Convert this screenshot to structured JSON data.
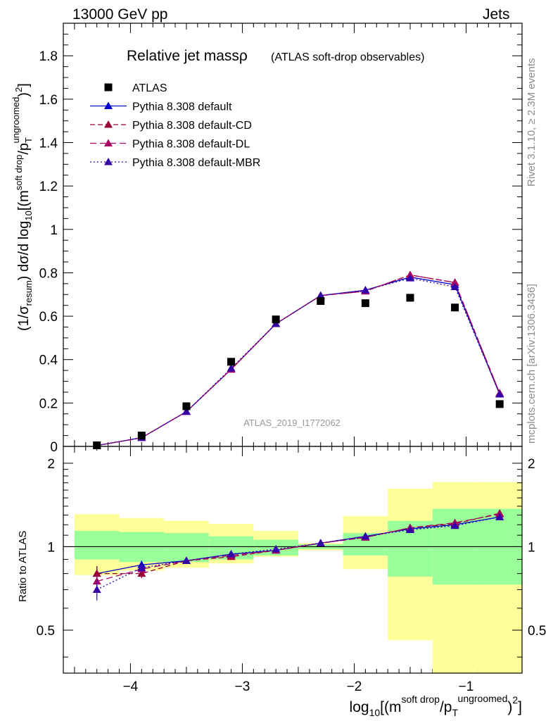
{
  "header": {
    "left": "13000 GeV pp",
    "right": "Jets"
  },
  "side_labels": {
    "rivet": "Rivet 3.1.10, ≥ 2.3M events",
    "mcplots": "mcplots.cern.ch [arXiv:1306.3436]"
  },
  "chart_data": {
    "type": "line",
    "title": "Relative jet massρ",
    "subtitle": "(ATLAS soft-drop observables)",
    "watermark": "ATLAS_2019_I1772062",
    "xlim": [
      -4.6,
      -0.5
    ],
    "x_ticks": [
      -4,
      -3,
      -2,
      -1
    ],
    "x_tick_labels": [
      "−4",
      "−3",
      "−2",
      "−1"
    ],
    "xlabel": "log10[(m^{soft drop}/p_T^{ungroomed})^2]",
    "xlabel_parts": {
      "a": "log",
      "b": "10",
      "c": "[(m",
      "d": "soft drop",
      "e": "/p",
      "f": "T",
      "g": "ungroomed",
      "h": ")",
      "i": "2",
      "j": "]"
    },
    "main": {
      "ylim": [
        0,
        1.95
      ],
      "y_ticks": [
        0,
        0.2,
        0.4,
        0.6,
        0.8,
        1,
        1.2,
        1.4,
        1.6,
        1.8
      ],
      "y_tick_labels": [
        "0",
        "0.2",
        "0.4",
        "0.6",
        "0.8",
        "1",
        "1.2",
        "1.4",
        "1.6",
        "1.8"
      ],
      "ylabel": "(1/σresum) dσ/d log10[(m^{soft drop}/p_T^{ungroomed})^2]",
      "ylabel_parts": {
        "a": "(1/σ",
        "b": "resum",
        "c": ") dσ/d log",
        "d": "10",
        "e": "[(m",
        "f": "soft drop",
        "g": "/p",
        "h": "T",
        "i": "ungroomed",
        "j": ")",
        "k": "2",
        "l": "]"
      }
    },
    "ratio": {
      "ylabel": "Ratio to ATLAS",
      "ylim": [
        0.35,
        2.3
      ],
      "y_ticks": [
        0.5,
        1,
        2
      ],
      "y_tick_labels": [
        "0.5",
        "1",
        "2"
      ]
    },
    "bins": [
      -4.5,
      -4.1,
      -3.7,
      -3.3,
      -2.9,
      -2.5,
      -2.1,
      -1.7,
      -1.3,
      -0.9,
      -0.5
    ],
    "x": [
      -4.3,
      -3.9,
      -3.5,
      -3.1,
      -2.7,
      -2.3,
      -1.9,
      -1.5,
      -1.1,
      -0.7
    ],
    "data": {
      "name": "ATLAS",
      "values": [
        0.005,
        0.05,
        0.185,
        0.39,
        0.585,
        0.67,
        0.66,
        0.685,
        0.64,
        0.195
      ],
      "band_inner": [
        [
          0.9,
          1.14
        ],
        [
          0.88,
          1.13
        ],
        [
          0.88,
          1.12
        ],
        [
          0.9,
          1.09
        ],
        [
          0.93,
          1.06
        ],
        [
          0.98,
          1.02
        ],
        [
          0.93,
          1.12
        ],
        [
          0.78,
          1.24
        ],
        [
          0.73,
          1.37
        ],
        [
          0.73,
          1.37
        ]
      ],
      "band_outer": [
        [
          0.79,
          1.31
        ],
        [
          0.82,
          1.27
        ],
        [
          0.84,
          1.24
        ],
        [
          0.87,
          1.21
        ],
        [
          0.92,
          1.14
        ],
        [
          0.97,
          1.03
        ],
        [
          0.83,
          1.29
        ],
        [
          0.46,
          1.62
        ],
        [
          0.33,
          1.71
        ],
        [
          0.33,
          1.71
        ]
      ]
    },
    "series": [
      {
        "name": "Pythia 8.308 default",
        "color": "#0000cc",
        "dash": "",
        "values": [
          0.004,
          0.04,
          0.16,
          0.355,
          0.565,
          0.695,
          0.72,
          0.78,
          0.745,
          0.24
        ],
        "ratio": [
          0.8,
          0.86,
          0.89,
          0.94,
          0.97,
          1.03,
          1.09,
          1.16,
          1.2,
          1.28
        ],
        "ratio_err": [
          0.05,
          0.03,
          0.01,
          0.01,
          0.01,
          0.01,
          0.01,
          0.01,
          0.01,
          0.01
        ]
      },
      {
        "name": "Pythia 8.308 default-CD",
        "color": "#990033",
        "dash": "7,4",
        "values": [
          0.004,
          0.04,
          0.16,
          0.355,
          0.565,
          0.695,
          0.715,
          0.79,
          0.755,
          0.245
        ],
        "ratio": [
          0.8,
          0.8,
          0.89,
          0.92,
          0.97,
          1.03,
          1.08,
          1.17,
          1.21,
          1.32
        ],
        "ratio_err": [
          0.05,
          0.03,
          0.01,
          0.01,
          0.01,
          0.01,
          0.01,
          0.01,
          0.01,
          0.01
        ]
      },
      {
        "name": "Pythia 8.308 default-DL",
        "color": "#aa0066",
        "dash": "9,5",
        "values": [
          0.004,
          0.04,
          0.16,
          0.355,
          0.565,
          0.695,
          0.715,
          0.79,
          0.755,
          0.245
        ],
        "ratio": [
          0.75,
          0.83,
          0.89,
          0.93,
          0.97,
          1.03,
          1.08,
          1.17,
          1.22,
          1.31
        ],
        "ratio_err": [
          0.05,
          0.03,
          0.01,
          0.01,
          0.01,
          0.01,
          0.01,
          0.01,
          0.01,
          0.01
        ]
      },
      {
        "name": "Pythia 8.308 default-MBR",
        "color": "#3300aa",
        "dash": "2,3",
        "values": [
          0.004,
          0.04,
          0.16,
          0.36,
          0.565,
          0.695,
          0.72,
          0.775,
          0.735,
          0.24
        ],
        "ratio": [
          0.7,
          0.84,
          0.89,
          0.94,
          0.98,
          1.03,
          1.09,
          1.15,
          1.19,
          1.28
        ],
        "ratio_err": [
          0.06,
          0.03,
          0.01,
          0.01,
          0.01,
          0.01,
          0.01,
          0.01,
          0.01,
          0.01
        ]
      }
    ],
    "colors": {
      "band_outer": "#ffff99",
      "band_inner": "#99ff99",
      "data_marker": "#000000",
      "watermark": "#999999"
    }
  }
}
